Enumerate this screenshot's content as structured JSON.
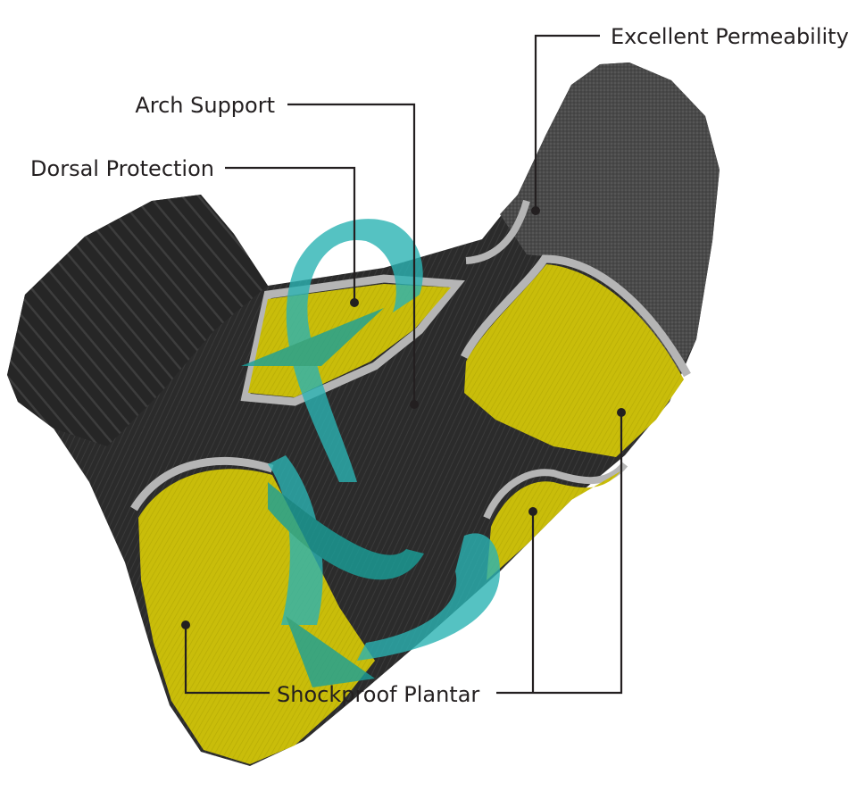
{
  "labels": {
    "excellent_permeability": "Excellent Permeability",
    "arch_support": "Arch Support",
    "dorsal_protection": "Dorsal Protection",
    "shockproof_plantar": "Shockproof Plantar"
  },
  "colors": {
    "sock_body": "#2b2b2b",
    "sock_toe": "#4a4a4a",
    "cushion_yellow": "#c9bd0a",
    "trim_gray": "#b5b5b5",
    "arrow_teal": "#2bb3b3",
    "leader_line": "#231f20"
  }
}
